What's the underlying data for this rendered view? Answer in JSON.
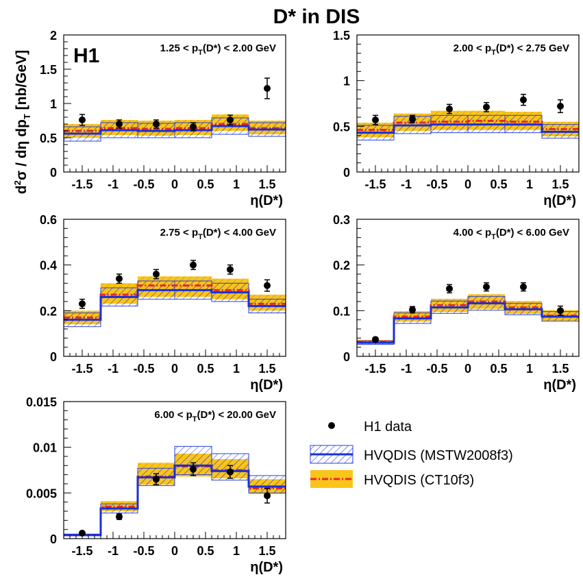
{
  "figure": {
    "title": "D* in DIS",
    "experiment_label": "H1",
    "ylabel": "d²σ / dη dp_T [nb/GeV]",
    "xlabel": "η(D*)"
  },
  "legend": {
    "items": [
      {
        "label": "H1 data",
        "kind": "data"
      },
      {
        "label": "HVQDIS (MSTW2008f3)",
        "kind": "mstw"
      },
      {
        "label": "HVQDIS (CT10f3)",
        "kind": "ct10"
      }
    ]
  },
  "colors": {
    "mstw_line": "#1b2fd6",
    "mstw_hatch": "#2a3fe0",
    "ct10_line": "#e8262a",
    "ct10_band": "#f9c51a",
    "ct10_hatch": "#c98a00",
    "data": "#000000"
  },
  "chart_data": [
    {
      "type": "step-histogram+errorbar",
      "panel_label": "1.25 < p_T(D*) < 2.00 GeV",
      "bin_edges": [
        -1.8,
        -1.2,
        -0.6,
        0.0,
        0.6,
        1.2,
        1.8
      ],
      "xlim": [
        -1.8,
        1.8
      ],
      "ylim": [
        0,
        2
      ],
      "yticks": [
        0,
        0.5,
        1,
        1.5,
        2
      ],
      "ytick_labels": [
        "0",
        "0.5",
        "1",
        "1.5",
        "2"
      ],
      "xticks": [
        -1.5,
        -1,
        -0.5,
        0,
        0.5,
        1,
        1.5
      ],
      "xtick_labels": [
        "-1.5",
        "-1",
        "-0.5",
        "0",
        "0.5",
        "1",
        "1.5"
      ],
      "data": {
        "x": [
          -1.5,
          -0.9,
          -0.3,
          0.3,
          0.9,
          1.5
        ],
        "y": [
          0.76,
          0.7,
          0.7,
          0.66,
          0.76,
          1.22
        ],
        "err": [
          0.08,
          0.06,
          0.06,
          0.06,
          0.07,
          0.15
        ]
      },
      "mstw": {
        "central": [
          0.56,
          0.61,
          0.6,
          0.61,
          0.67,
          0.62
        ],
        "low": [
          0.45,
          0.5,
          0.5,
          0.5,
          0.55,
          0.52
        ],
        "high": [
          0.66,
          0.72,
          0.71,
          0.72,
          0.79,
          0.72
        ]
      },
      "ct10": {
        "central": [
          0.6,
          0.64,
          0.63,
          0.64,
          0.7,
          0.64
        ],
        "low": [
          0.5,
          0.54,
          0.53,
          0.54,
          0.6,
          0.55
        ],
        "high": [
          0.7,
          0.76,
          0.75,
          0.76,
          0.84,
          0.75
        ]
      }
    },
    {
      "type": "step-histogram+errorbar",
      "panel_label": "2.00 < p_T(D*) < 2.75 GeV",
      "bin_edges": [
        -1.8,
        -1.2,
        -0.6,
        0.0,
        0.6,
        1.2,
        1.8
      ],
      "xlim": [
        -1.8,
        1.8
      ],
      "ylim": [
        0,
        1.5
      ],
      "yticks": [
        0,
        0.5,
        1,
        1.5
      ],
      "ytick_labels": [
        "0",
        "0.5",
        "1",
        "1.5"
      ],
      "xticks": [
        -1.5,
        -1,
        -0.5,
        0,
        0.5,
        1,
        1.5
      ],
      "xtick_labels": [
        "-1.5",
        "-1",
        "-0.5",
        "0",
        "0.5",
        "1",
        "1.5"
      ],
      "data": {
        "x": [
          -1.5,
          -0.9,
          -0.3,
          0.3,
          0.9,
          1.5
        ],
        "y": [
          0.57,
          0.58,
          0.69,
          0.71,
          0.79,
          0.72
        ],
        "err": [
          0.05,
          0.04,
          0.05,
          0.05,
          0.06,
          0.07
        ]
      },
      "mstw": {
        "central": [
          0.43,
          0.51,
          0.52,
          0.52,
          0.52,
          0.44
        ],
        "low": [
          0.35,
          0.42,
          0.43,
          0.43,
          0.43,
          0.37
        ],
        "high": [
          0.51,
          0.61,
          0.62,
          0.62,
          0.62,
          0.52
        ]
      },
      "ct10": {
        "central": [
          0.46,
          0.54,
          0.55,
          0.56,
          0.55,
          0.47
        ],
        "low": [
          0.38,
          0.45,
          0.46,
          0.46,
          0.46,
          0.39
        ],
        "high": [
          0.54,
          0.64,
          0.67,
          0.67,
          0.66,
          0.55
        ]
      }
    },
    {
      "type": "step-histogram+errorbar",
      "panel_label": "2.75 < p_T(D*) < 4.00 GeV",
      "bin_edges": [
        -1.8,
        -1.2,
        -0.6,
        0.0,
        0.6,
        1.2,
        1.8
      ],
      "xlim": [
        -1.8,
        1.8
      ],
      "ylim": [
        0,
        0.6
      ],
      "yticks": [
        0,
        0.2,
        0.4,
        0.6
      ],
      "ytick_labels": [
        "0",
        "0.2",
        "0.4",
        "0.6"
      ],
      "xticks": [
        -1.5,
        -1,
        -0.5,
        0,
        0.5,
        1,
        1.5
      ],
      "xtick_labels": [
        "-1.5",
        "-1",
        "-0.5",
        "0",
        "0.5",
        "1",
        "1.5"
      ],
      "data": {
        "x": [
          -1.5,
          -0.9,
          -0.3,
          0.3,
          0.9,
          1.5
        ],
        "y": [
          0.23,
          0.34,
          0.36,
          0.4,
          0.38,
          0.31
        ],
        "err": [
          0.02,
          0.02,
          0.02,
          0.02,
          0.02,
          0.025
        ]
      },
      "mstw": {
        "central": [
          0.16,
          0.26,
          0.29,
          0.29,
          0.28,
          0.22
        ],
        "low": [
          0.13,
          0.22,
          0.25,
          0.25,
          0.24,
          0.19
        ],
        "high": [
          0.19,
          0.3,
          0.33,
          0.33,
          0.32,
          0.25
        ]
      },
      "ct10": {
        "central": [
          0.17,
          0.27,
          0.31,
          0.31,
          0.29,
          0.23
        ],
        "low": [
          0.14,
          0.23,
          0.26,
          0.26,
          0.25,
          0.2
        ],
        "high": [
          0.2,
          0.32,
          0.35,
          0.35,
          0.34,
          0.27
        ]
      }
    },
    {
      "type": "step-histogram+errorbar",
      "panel_label": "4.00 < p_T(D*) < 6.00 GeV",
      "bin_edges": [
        -1.8,
        -1.2,
        -0.6,
        0.0,
        0.6,
        1.2,
        1.8
      ],
      "xlim": [
        -1.8,
        1.8
      ],
      "ylim": [
        0,
        0.3
      ],
      "yticks": [
        0,
        0.1,
        0.2,
        0.3
      ],
      "ytick_labels": [
        "0",
        "0.1",
        "0.2",
        "0.3"
      ],
      "xticks": [
        -1.5,
        -1,
        -0.5,
        0,
        0.5,
        1,
        1.5
      ],
      "xtick_labels": [
        "-1.5",
        "-1",
        "-0.5",
        "0",
        "0.5",
        "1",
        "1.5"
      ],
      "data": {
        "x": [
          -1.5,
          -0.9,
          -0.3,
          0.3,
          0.9,
          1.5
        ],
        "y": [
          0.037,
          0.102,
          0.148,
          0.152,
          0.152,
          0.1
        ],
        "err": [
          0.004,
          0.007,
          0.009,
          0.009,
          0.009,
          0.01
        ]
      },
      "mstw": {
        "central": [
          0.03,
          0.083,
          0.107,
          0.116,
          0.103,
          0.087
        ],
        "low": [
          0.026,
          0.072,
          0.094,
          0.101,
          0.091,
          0.077
        ],
        "high": [
          0.034,
          0.095,
          0.121,
          0.131,
          0.116,
          0.098
        ]
      },
      "ct10": {
        "central": [
          0.032,
          0.087,
          0.112,
          0.12,
          0.107,
          0.089
        ],
        "low": [
          0.027,
          0.076,
          0.097,
          0.104,
          0.093,
          0.078
        ],
        "high": [
          0.036,
          0.099,
          0.126,
          0.136,
          0.121,
          0.101
        ]
      }
    },
    {
      "type": "step-histogram+errorbar",
      "panel_label": "6.00 < p_T(D*) < 20.00 GeV",
      "bin_edges": [
        -1.8,
        -1.2,
        -0.6,
        0.0,
        0.6,
        1.2,
        1.8
      ],
      "xlim": [
        -1.8,
        1.8
      ],
      "ylim": [
        0,
        0.015
      ],
      "yticks": [
        0,
        0.005,
        0.01,
        0.015
      ],
      "ytick_labels": [
        "0",
        "0.005",
        "0.01",
        "0.015"
      ],
      "xticks": [
        -1.5,
        -1,
        -0.5,
        0,
        0.5,
        1,
        1.5
      ],
      "xtick_labels": [
        "-1.5",
        "-1",
        "-0.5",
        "0",
        "0.5",
        "1",
        "1.5"
      ],
      "data": {
        "x": [
          -1.5,
          -0.9,
          -0.3,
          0.3,
          0.9,
          1.5
        ],
        "y": [
          0.0006,
          0.0024,
          0.0065,
          0.0076,
          0.0073,
          0.0047
        ],
        "err": [
          0.0001,
          0.0003,
          0.0006,
          0.0007,
          0.0007,
          0.0008
        ]
      },
      "mstw": {
        "central": [
          0.0004,
          0.0033,
          0.0067,
          0.008,
          0.0074,
          0.0057
        ],
        "low": [
          0.0003,
          0.0028,
          0.0058,
          0.007,
          0.0064,
          0.005
        ],
        "high": [
          0.0005,
          0.0038,
          0.0077,
          0.0101,
          0.0093,
          0.0069
        ]
      },
      "ct10": {
        "central": [
          0.0004,
          0.0035,
          0.0068,
          0.0079,
          0.0075,
          0.0055
        ],
        "low": [
          0.0003,
          0.003,
          0.0059,
          0.0068,
          0.0066,
          0.0049
        ],
        "high": [
          0.0005,
          0.0041,
          0.0083,
          0.0093,
          0.0087,
          0.0065
        ]
      }
    }
  ]
}
